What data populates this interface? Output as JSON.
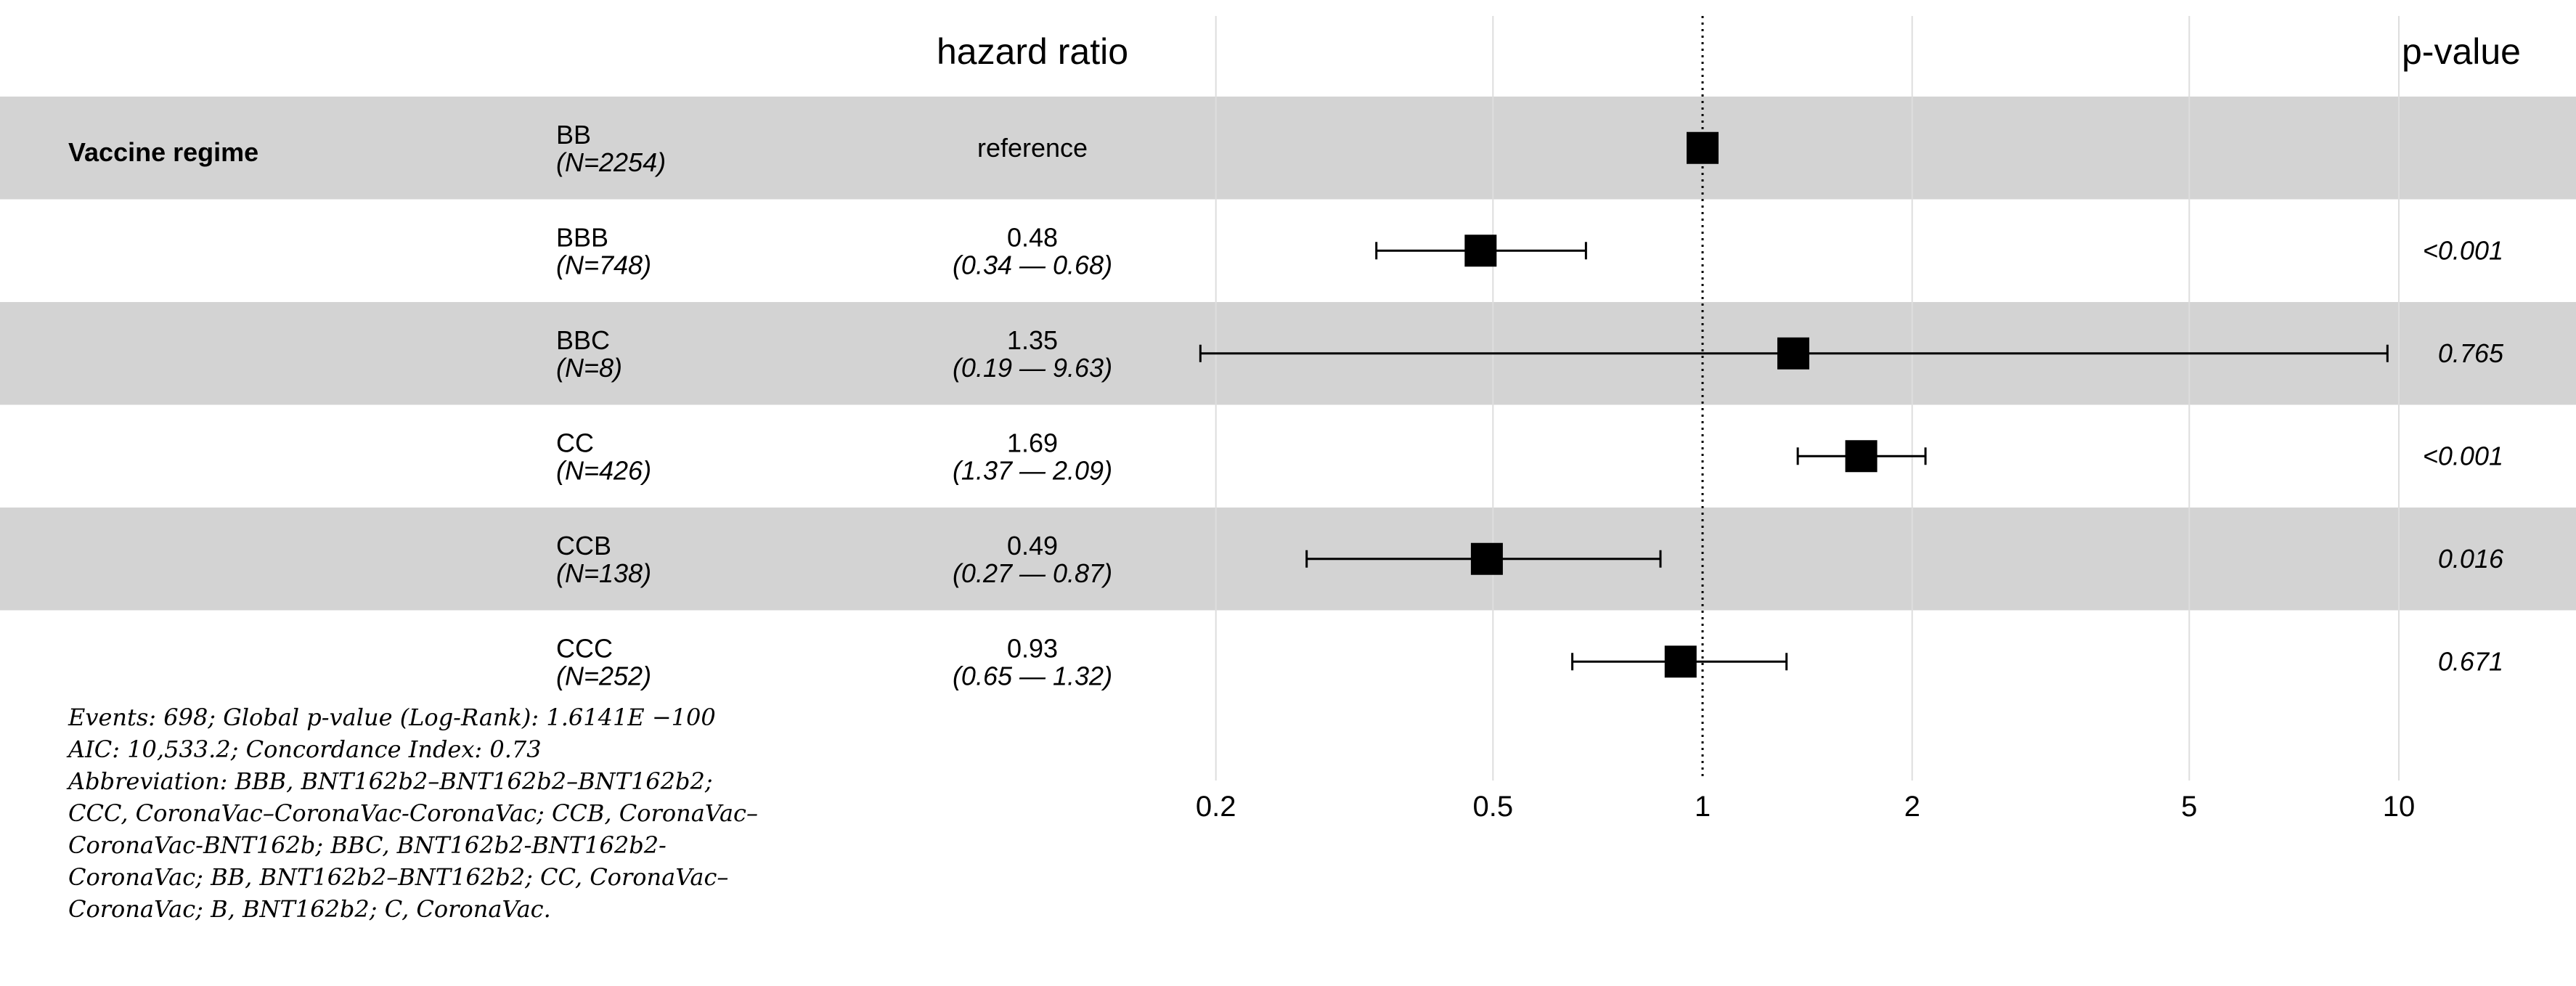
{
  "chart_data": {
    "type": "forest",
    "x_scale": "log",
    "hazard_ratio_header": "hazard ratio",
    "pvalue_header": "p-value",
    "group_label": "Vaccine regime",
    "reference_value": 1,
    "xlim": [
      0.2,
      10
    ],
    "x_ticks": [
      {
        "value": 0.2,
        "label": "0.2"
      },
      {
        "value": 0.5,
        "label": "0.5"
      },
      {
        "value": 1,
        "label": "1"
      },
      {
        "value": 2,
        "label": "2"
      },
      {
        "value": 5,
        "label": "5"
      },
      {
        "value": 10,
        "label": "10"
      }
    ],
    "rows": [
      {
        "name": "BB",
        "n_label": "(N=2254)",
        "hr": 1.0,
        "ci_low": null,
        "ci_high": null,
        "hr_label": "reference",
        "ci_label": "",
        "p_label": ""
      },
      {
        "name": "BBB",
        "n_label": "(N=748)",
        "hr": 0.48,
        "ci_low": 0.34,
        "ci_high": 0.68,
        "hr_label": "0.48",
        "ci_label": "(0.34 — 0.68)",
        "p_label": "<0.001"
      },
      {
        "name": "BBC",
        "n_label": "(N=8)",
        "hr": 1.35,
        "ci_low": 0.19,
        "ci_high": 9.63,
        "hr_label": "1.35",
        "ci_label": "(0.19 — 9.63)",
        "p_label": "0.765"
      },
      {
        "name": "CC",
        "n_label": "(N=426)",
        "hr": 1.69,
        "ci_low": 1.37,
        "ci_high": 2.09,
        "hr_label": "1.69",
        "ci_label": "(1.37 — 2.09)",
        "p_label": "<0.001"
      },
      {
        "name": "CCB",
        "n_label": "(N=138)",
        "hr": 0.49,
        "ci_low": 0.27,
        "ci_high": 0.87,
        "hr_label": "0.49",
        "ci_label": "(0.27 — 0.87)",
        "p_label": "0.016"
      },
      {
        "name": "CCC",
        "n_label": "(N=252)",
        "hr": 0.93,
        "ci_low": 0.65,
        "ci_high": 1.32,
        "hr_label": "0.93",
        "ci_label": "(0.65 — 1.32)",
        "p_label": "0.671"
      }
    ]
  },
  "footnote": {
    "lines": [
      "Events: 698; Global p-value (Log-Rank): 1.6141E −100",
      "AIC: 10,533.2; Concordance Index: 0.73",
      "Abbreviation: BBB, BNT162b2–BNT162b2–BNT162b2;",
      "CCC, CoronaVac–CoronaVac-CoronaVac; CCB, CoronaVac–",
      "CoronaVac-BNT162b; BBC, BNT162b2-BNT162b2-",
      "CoronaVac; BB, BNT162b2–BNT162b2; CC, CoronaVac–",
      "CoronaVac; B, BNT162b2; C, CoronaVac."
    ]
  },
  "colors": {
    "band": "#d3d3d3",
    "grid": "#dedede",
    "marker": "#000000",
    "text": "#000000"
  }
}
